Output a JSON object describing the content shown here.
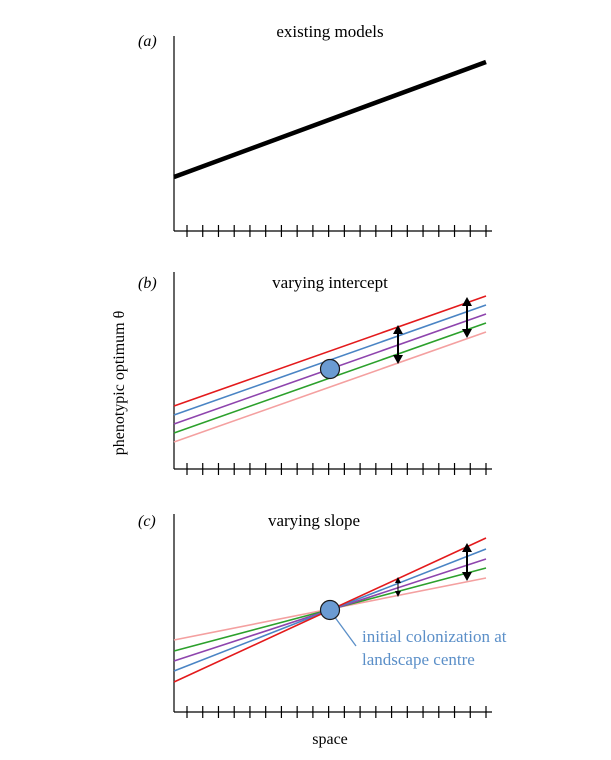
{
  "figure": {
    "y_label": "phenotypic optimum θ",
    "x_label": "space",
    "panels": [
      {
        "id": "a",
        "label": "(a)",
        "title": "existing models"
      },
      {
        "id": "b",
        "label": "(b)",
        "title": "varying intercept"
      },
      {
        "id": "c",
        "label": "(c)",
        "title": "varying slope"
      }
    ],
    "annotation": {
      "line1": "initial colonization at",
      "line2": "landscape centre"
    },
    "colors": {
      "base_line": "#000000",
      "series": [
        "#e31a1c",
        "#4a84c4",
        "#8e44ad",
        "#2ca02c",
        "#f4a0a0"
      ],
      "marker_fill": "#6b9bd2",
      "annotation_text": "#5b8fc8"
    },
    "tick_count": 20,
    "icons": [
      "double-arrow-icon",
      "colonization-point-icon"
    ]
  }
}
